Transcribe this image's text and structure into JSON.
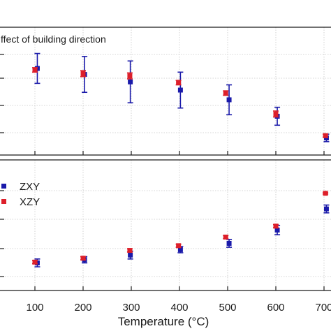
{
  "chart_data": [
    {
      "type": "scatter",
      "panel": "top",
      "annotation": "ffect of building direction",
      "x_tick_labels": [
        "100",
        "200",
        "300",
        "400",
        "500",
        "600",
        "700"
      ],
      "grid": true,
      "series": [
        {
          "name": "ZXY",
          "color": "#1a1aaa",
          "marker": "square",
          "points": [
            {
              "x": 105,
              "y": 0.86,
              "err": 0.2
            },
            {
              "x": 203,
              "y": 0.78,
              "err": 0.24
            },
            {
              "x": 298,
              "y": 0.68,
              "err": 0.28
            },
            {
              "x": 402,
              "y": 0.57,
              "err": 0.24
            },
            {
              "x": 503,
              "y": 0.44,
              "err": 0.2
            },
            {
              "x": 603,
              "y": 0.22,
              "err": 0.12
            },
            {
              "x": 705,
              "y": -0.07,
              "err": 0.05
            }
          ]
        },
        {
          "name": "XZY",
          "color": "#dd1f2a",
          "marker": "square",
          "points": [
            {
              "x": 100,
              "y": 0.84,
              "err": 0.03
            },
            {
              "x": 200,
              "y": 0.79,
              "err": 0.04
            },
            {
              "x": 297,
              "y": 0.76,
              "err": 0.04
            },
            {
              "x": 398,
              "y": 0.67,
              "err": 0.03
            },
            {
              "x": 496,
              "y": 0.53,
              "err": 0.03
            },
            {
              "x": 600,
              "y": 0.25,
              "err": 0.04
            },
            {
              "x": 703,
              "y": -0.04,
              "err": 0.02
            }
          ]
        }
      ]
    },
    {
      "type": "scatter",
      "panel": "bottom",
      "xlabel": "Temperature (°C)",
      "x_tick_labels": [
        "100",
        "200",
        "300",
        "400",
        "500",
        "600",
        "700"
      ],
      "grid": true,
      "legend": [
        "ZXY",
        "XZY"
      ],
      "legend_position": "top-left",
      "series": [
        {
          "name": "ZXY",
          "color": "#1a1aaa",
          "marker": "square",
          "points": [
            {
              "x": 105,
              "y": 0.21,
              "err": 0.05
            },
            {
              "x": 203,
              "y": 0.25,
              "err": 0.04
            },
            {
              "x": 298,
              "y": 0.31,
              "err": 0.05
            },
            {
              "x": 402,
              "y": 0.38,
              "err": 0.04
            },
            {
              "x": 503,
              "y": 0.46,
              "err": 0.05
            },
            {
              "x": 603,
              "y": 0.63,
              "err": 0.06
            },
            {
              "x": 705,
              "y": 0.9,
              "err": 0.05
            }
          ]
        },
        {
          "name": "XZY",
          "color": "#dd1f2a",
          "marker": "square",
          "points": [
            {
              "x": 100,
              "y": 0.22,
              "err": 0.02
            },
            {
              "x": 200,
              "y": 0.27,
              "err": 0.02
            },
            {
              "x": 297,
              "y": 0.37,
              "err": 0.02
            },
            {
              "x": 398,
              "y": 0.43,
              "err": 0.02
            },
            {
              "x": 496,
              "y": 0.54,
              "err": 0.02
            },
            {
              "x": 600,
              "y": 0.68,
              "err": 0.02
            },
            {
              "x": 703,
              "y": 1.1,
              "err": 0.01
            }
          ]
        }
      ]
    }
  ]
}
